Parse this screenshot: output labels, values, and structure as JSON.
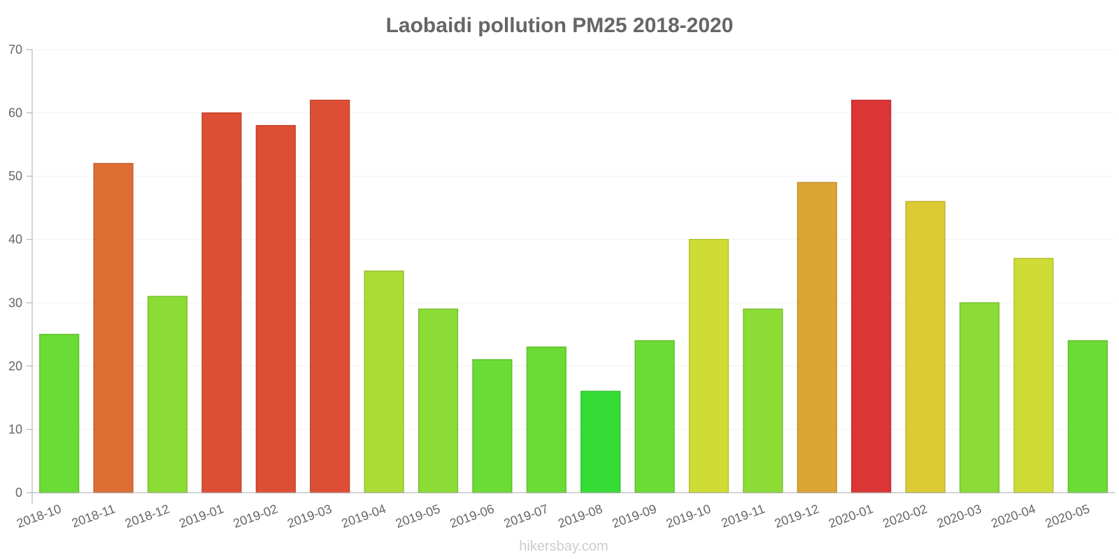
{
  "chart_data": {
    "type": "bar",
    "title": "Laobaidi pollution PM25 2018-2020",
    "xlabel": "",
    "ylabel": "",
    "ylim": [
      0,
      70
    ],
    "yticks": [
      0,
      10,
      20,
      30,
      40,
      50,
      60,
      70
    ],
    "grid": true,
    "legend": "none",
    "categories": [
      "2018-10",
      "2018-11",
      "2018-12",
      "2019-01",
      "2019-02",
      "2019-03",
      "2019-04",
      "2019-05",
      "2019-06",
      "2019-07",
      "2019-08",
      "2019-09",
      "2019-10",
      "2019-11",
      "2019-12",
      "2020-01",
      "2020-02",
      "2020-03",
      "2020-04",
      "2020-05"
    ],
    "values": [
      25,
      52,
      31,
      60,
      58,
      62,
      35,
      29,
      21,
      23,
      16,
      24,
      40,
      29,
      49,
      62,
      46,
      30,
      37,
      24
    ],
    "bar_colors": [
      "#6bdc35",
      "#dd6e34",
      "#8bdc35",
      "#dd4f34",
      "#dd4f34",
      "#dd4f34",
      "#abdc35",
      "#8bdc35",
      "#6bdc35",
      "#6bdc35",
      "#35dc35",
      "#6bdc35",
      "#cedc35",
      "#8bdc35",
      "#dca635",
      "#dc3535",
      "#dccb35",
      "#8bdc35",
      "#cedc35",
      "#6bdc35"
    ],
    "bar_border_colors": [
      "#5ec02e",
      "#c25f2c",
      "#79c02e",
      "#c2442c",
      "#c2442c",
      "#c2442c",
      "#95c02e",
      "#79c02e",
      "#5ec02e",
      "#5ec02e",
      "#2ec02e",
      "#5ec02e",
      "#b4c02e",
      "#79c02e",
      "#c0912e",
      "#c02e2e",
      "#c0b12e",
      "#79c02e",
      "#b4c02e",
      "#5ec02e"
    ]
  },
  "watermark": "hikersbay.com"
}
